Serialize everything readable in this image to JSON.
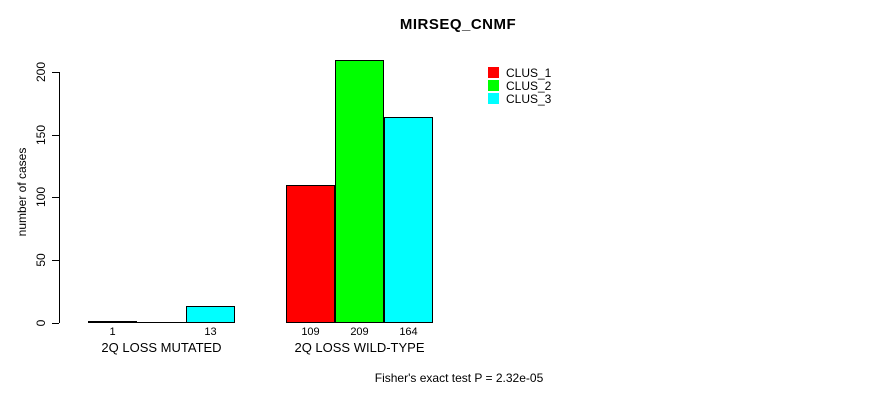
{
  "chart_data": {
    "type": "bar",
    "title": "MIRSEQ_CNMF",
    "ylabel": "number of cases",
    "ylim": [
      0,
      200
    ],
    "yticks": [
      0,
      50,
      100,
      150,
      200
    ],
    "grid": false,
    "legend_position": "top-right",
    "categories": [
      "2Q LOSS MUTATED",
      "2Q LOSS WILD-TYPE"
    ],
    "series": [
      {
        "name": "CLUS_1",
        "color": "#FF0000",
        "values": [
          1,
          109
        ]
      },
      {
        "name": "CLUS_2",
        "color": "#00FF00",
        "values": [
          0,
          209
        ]
      },
      {
        "name": "CLUS_3",
        "color": "#00FFFF",
        "values": [
          13,
          164
        ]
      }
    ],
    "value_labels": [
      [
        "1",
        "",
        "13"
      ],
      [
        "109",
        "209",
        "164"
      ]
    ],
    "annotation": "Fisher's exact test P = 2.32e-05"
  }
}
